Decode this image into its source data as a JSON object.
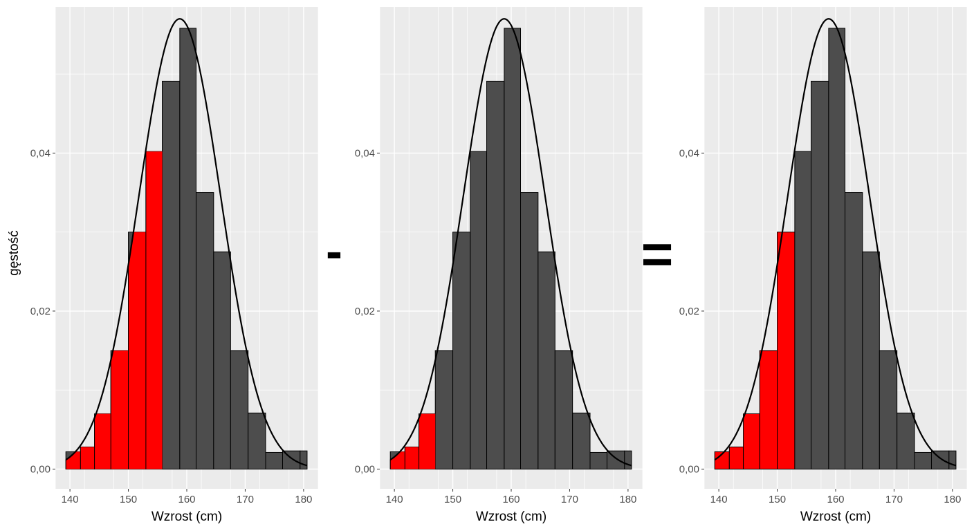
{
  "figure": {
    "minus_symbol": "-",
    "equals_symbol": "=",
    "colors": {
      "panel_background": "#ebebeb",
      "grid": "#ffffff",
      "bar_fill": "#4d4d4d",
      "highlight_fill": "#ff0000",
      "bar_outline": "#000000",
      "curve": "#000000",
      "axis_text": "#4d4d4d"
    }
  },
  "chart_data": [
    {
      "type": "bar",
      "subtype": "histogram-with-density-curve",
      "xlabel": "Wzrost (cm)",
      "ylabel": "gęstość",
      "xlim": [
        137.5,
        182.5
      ],
      "ylim": [
        -0.0025,
        0.0585
      ],
      "x_ticks": [
        140,
        150,
        160,
        170,
        180
      ],
      "x_tick_labels": [
        "140",
        "150",
        "160",
        "170",
        "180"
      ],
      "y_ticks": [
        0.0,
        0.02,
        0.04
      ],
      "y_tick_labels": [
        "0,00",
        "0,02",
        "0,04"
      ],
      "grid": true,
      "bin_edges": [
        139.3,
        141.8,
        144.2,
        147.0,
        150.0,
        153.0,
        155.8,
        158.8,
        161.6,
        164.6,
        167.5,
        170.5,
        173.5,
        176.4,
        179.4,
        180.6
      ],
      "densities": [
        0.0022,
        0.0028,
        0.007,
        0.015,
        0.03,
        0.0402,
        0.0491,
        0.0558,
        0.035,
        0.0275,
        0.015,
        0.0071,
        0.0021,
        0.0023,
        0.0023
      ],
      "curve": {
        "mean": 158.8,
        "sd": 7.0
      },
      "highlight_below_x": 155.8,
      "highlight_mode": "area-under-curve-within-bars"
    },
    {
      "type": "bar",
      "subtype": "histogram-with-density-curve",
      "xlabel": "Wzrost (cm)",
      "xlim": [
        137.5,
        182.5
      ],
      "ylim": [
        -0.0025,
        0.0585
      ],
      "x_ticks": [
        140,
        150,
        160,
        170,
        180
      ],
      "x_tick_labels": [
        "140",
        "150",
        "160",
        "170",
        "180"
      ],
      "y_ticks": [
        0.0,
        0.02,
        0.04
      ],
      "y_tick_labels": [
        "0,00",
        "0,02",
        "0,04"
      ],
      "grid": true,
      "bin_edges": [
        139.3,
        141.8,
        144.2,
        147.0,
        150.0,
        153.0,
        155.8,
        158.8,
        161.6,
        164.6,
        167.5,
        170.5,
        173.5,
        176.4,
        179.4,
        180.6
      ],
      "densities": [
        0.0022,
        0.0028,
        0.007,
        0.015,
        0.03,
        0.0402,
        0.0491,
        0.0558,
        0.035,
        0.0275,
        0.015,
        0.0071,
        0.0021,
        0.0023,
        0.0023
      ],
      "curve": {
        "mean": 158.8,
        "sd": 7.0
      },
      "highlight_below_x": 147.0,
      "highlight_mode": "area-under-curve-within-bars"
    },
    {
      "type": "bar",
      "subtype": "histogram-with-density-curve",
      "xlabel": "Wzrost (cm)",
      "xlim": [
        137.5,
        182.5
      ],
      "ylim": [
        -0.0025,
        0.0585
      ],
      "x_ticks": [
        140,
        150,
        160,
        170,
        180
      ],
      "x_tick_labels": [
        "140",
        "150",
        "160",
        "170",
        "180"
      ],
      "y_ticks": [
        0.0,
        0.02,
        0.04
      ],
      "y_tick_labels": [
        "0,00",
        "0,02",
        "0,04"
      ],
      "grid": true,
      "bin_edges": [
        139.3,
        141.8,
        144.2,
        147.0,
        150.0,
        153.0,
        155.8,
        158.8,
        161.6,
        164.6,
        167.5,
        170.5,
        173.5,
        176.4,
        179.4,
        180.6
      ],
      "densities": [
        0.0022,
        0.0028,
        0.007,
        0.015,
        0.03,
        0.0402,
        0.0491,
        0.0558,
        0.035,
        0.0275,
        0.015,
        0.0071,
        0.0021,
        0.0023,
        0.0023
      ],
      "curve": {
        "mean": 158.8,
        "sd": 7.0
      },
      "highlight_below_x": 153.0,
      "highlight_mode": "full-bars"
    }
  ]
}
